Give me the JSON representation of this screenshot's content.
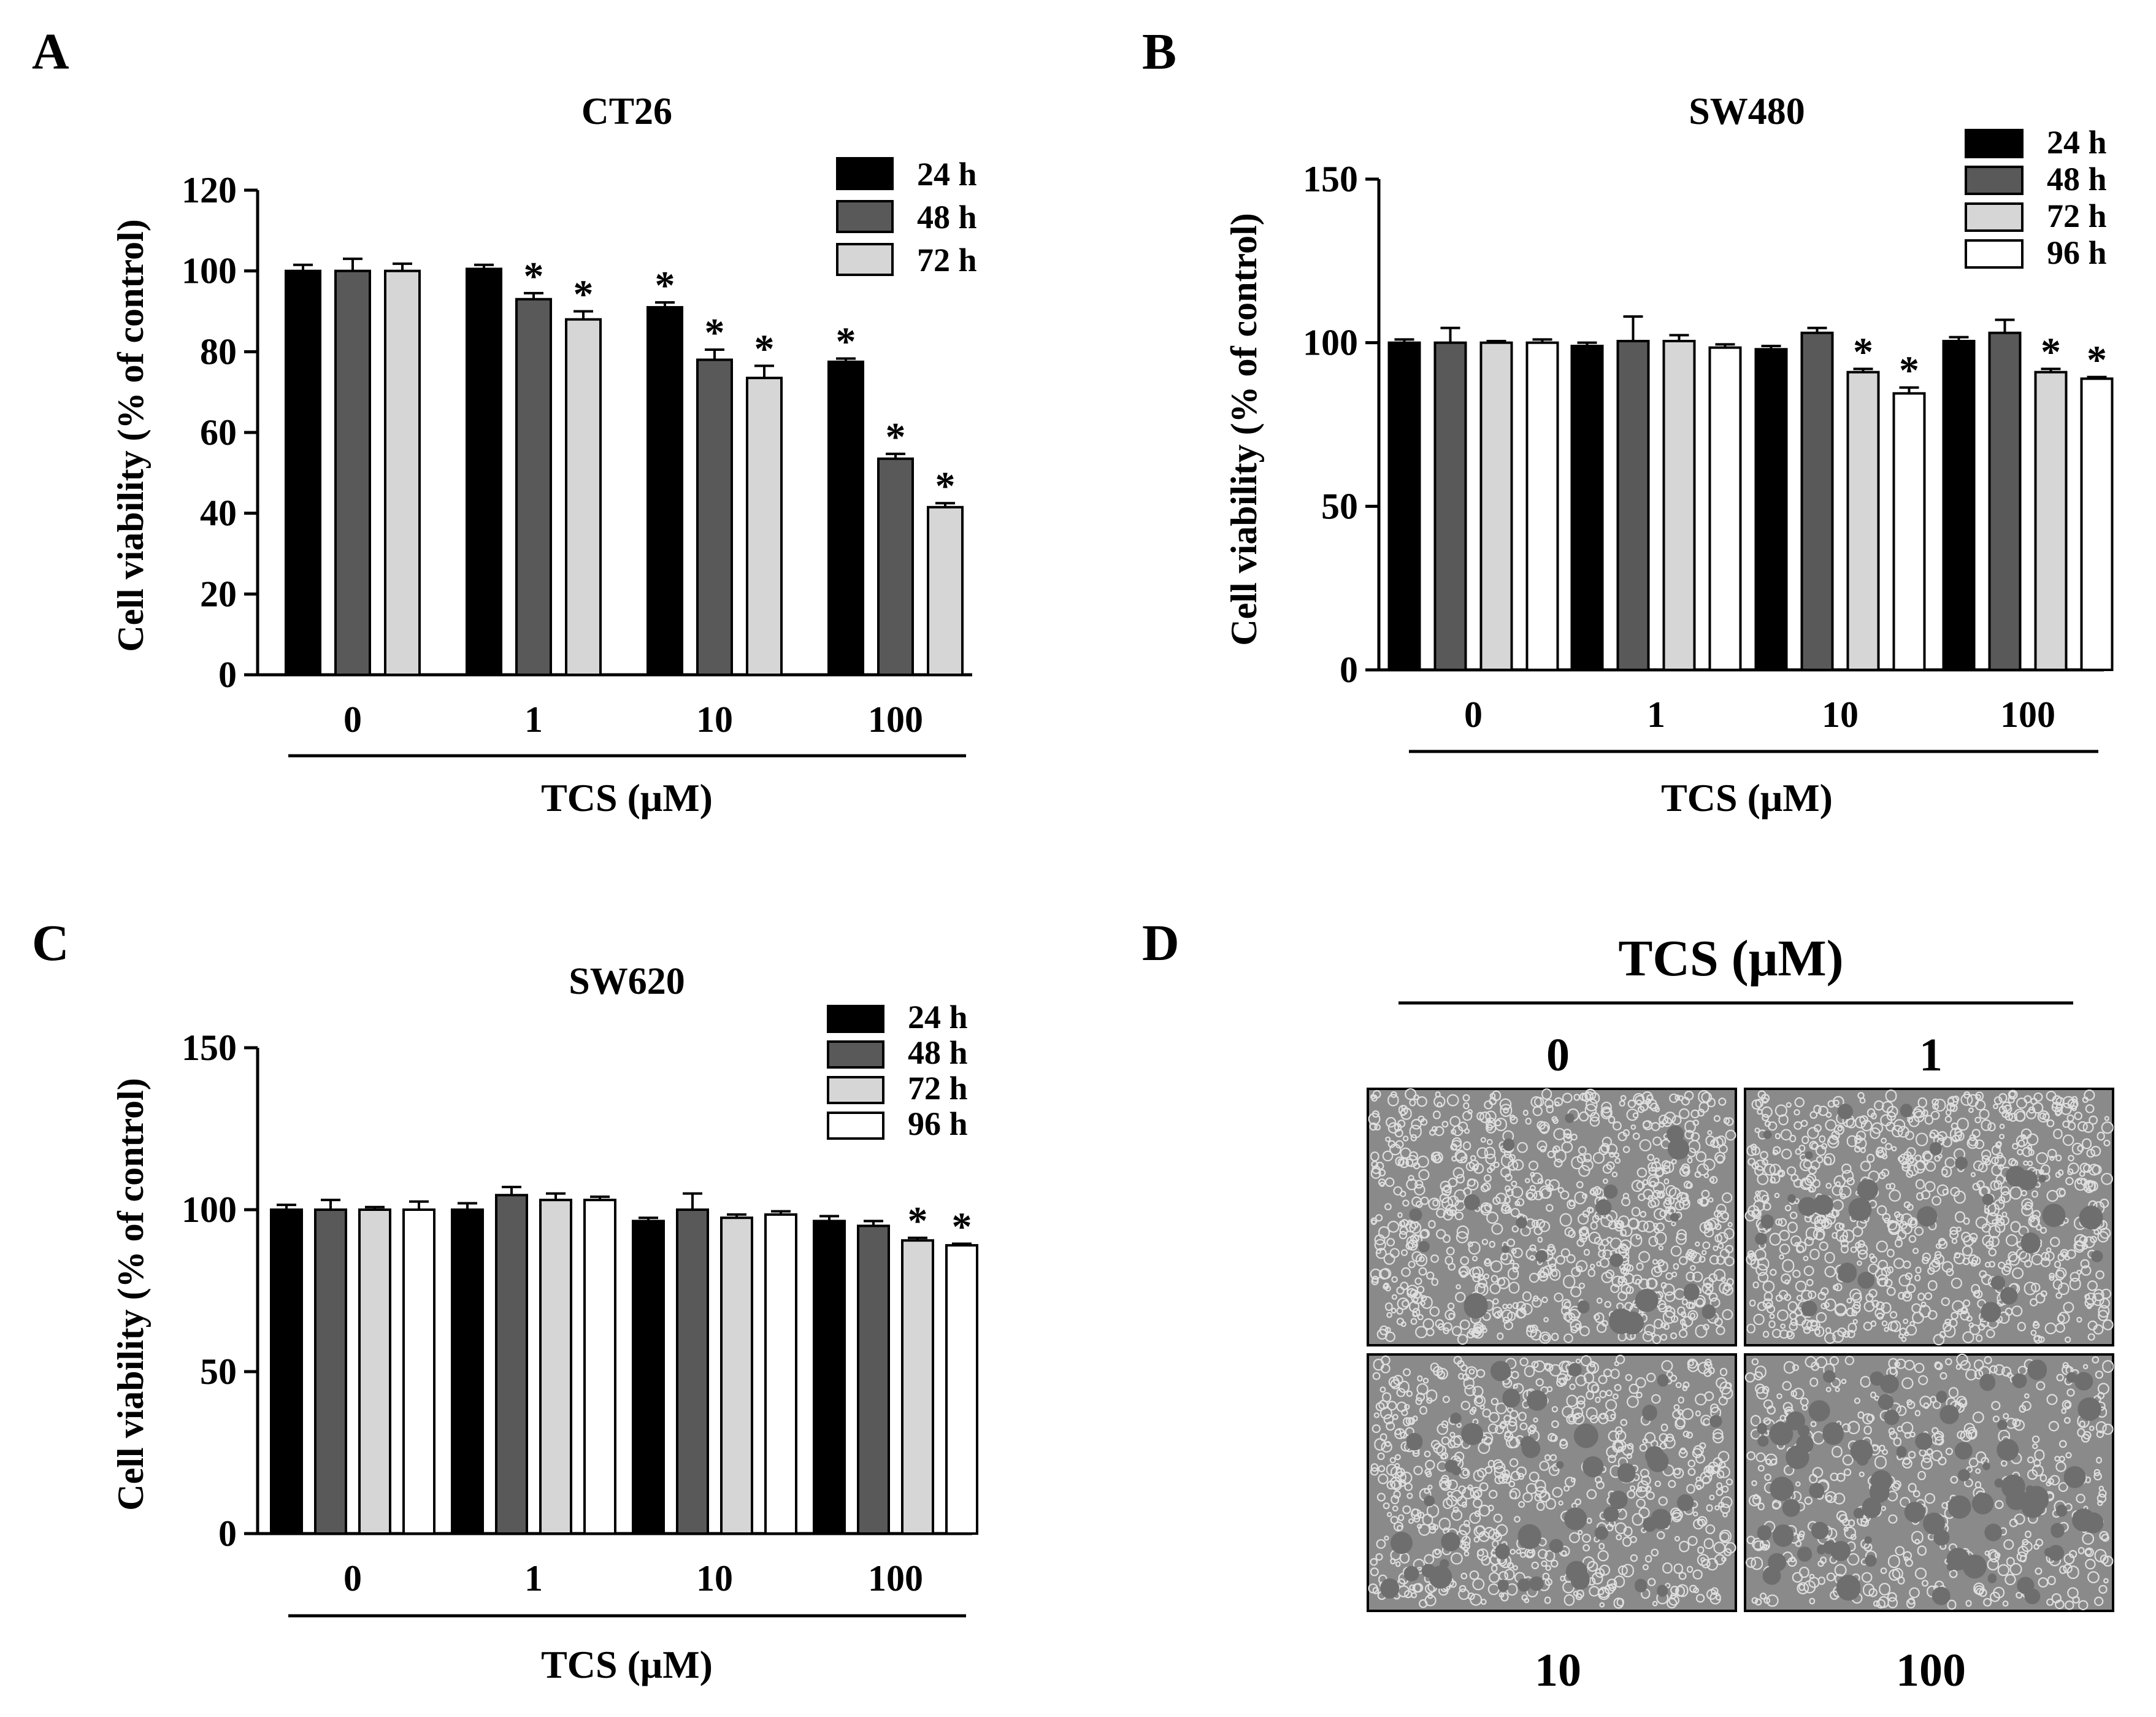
{
  "figure": {
    "panels": {
      "A": "A",
      "B": "B",
      "C": "C",
      "D": "D"
    },
    "series_names": [
      "24 h",
      "48 h",
      "72 h",
      "96 h"
    ],
    "colors": {
      "24 h": "#000000",
      "48 h": "#595959",
      "72 h": "#d6d6d6",
      "96 h": "#ffffff",
      "micrograph_background": "#8a8a8a",
      "micrograph_cells": "#dedede"
    }
  },
  "chart_data": [
    {
      "panel": "A",
      "type": "bar",
      "title": "CT26",
      "xlabel": "TCS (μM)",
      "ylabel": "Cell viability (% of control)",
      "categories": [
        "0",
        "1",
        "10",
        "100"
      ],
      "ylim": [
        0,
        120
      ],
      "yticks": [
        "0",
        "20",
        "40",
        "60",
        "80",
        "100",
        "120"
      ],
      "legend_position": "top-right",
      "series": [
        {
          "name": "24 h",
          "values": [
            100,
            100.5,
            91,
            77.5
          ],
          "errors": [
            1.5,
            1,
            1.2,
            0.8
          ],
          "significant": [
            false,
            false,
            true,
            true
          ]
        },
        {
          "name": "48 h",
          "values": [
            100,
            93,
            78,
            53.5
          ],
          "errors": [
            3,
            1.5,
            2.5,
            1.2
          ],
          "significant": [
            false,
            true,
            true,
            true
          ]
        },
        {
          "name": "72 h",
          "values": [
            100,
            88,
            73.5,
            41.5
          ],
          "errors": [
            1.8,
            2,
            3,
            1
          ],
          "significant": [
            false,
            true,
            true,
            true
          ]
        }
      ]
    },
    {
      "panel": "B",
      "type": "bar",
      "title": "SW480",
      "xlabel": "TCS (μM)",
      "ylabel": "Cell viability (% of control)",
      "categories": [
        "0",
        "1",
        "10",
        "100"
      ],
      "ylim": [
        0,
        150
      ],
      "yticks": [
        "0",
        "50",
        "100",
        "150"
      ],
      "legend_position": "top-right",
      "series": [
        {
          "name": "24 h",
          "values": [
            100,
            99,
            98,
            100.5
          ],
          "errors": [
            1,
            1,
            1,
            1.2
          ],
          "significant": [
            false,
            false,
            false,
            false
          ]
        },
        {
          "name": "48 h",
          "values": [
            100,
            100.5,
            103,
            103
          ],
          "errors": [
            4.5,
            7.5,
            1.5,
            4
          ],
          "significant": [
            false,
            false,
            false,
            false
          ]
        },
        {
          "name": "72 h",
          "values": [
            100,
            100.5,
            91,
            91
          ],
          "errors": [
            0.5,
            1.8,
            1,
            1
          ],
          "significant": [
            false,
            false,
            true,
            true
          ]
        },
        {
          "name": "96 h",
          "values": [
            100,
            98.5,
            84.5,
            89
          ],
          "errors": [
            1,
            1,
            1.8,
            0.5
          ],
          "significant": [
            false,
            false,
            true,
            true
          ]
        }
      ]
    },
    {
      "panel": "C",
      "type": "bar",
      "title": "SW620",
      "xlabel": "TCS (μM)",
      "ylabel": "Cell viability (% of control)",
      "categories": [
        "0",
        "1",
        "10",
        "100"
      ],
      "ylim": [
        0,
        150
      ],
      "yticks": [
        "0",
        "50",
        "100",
        "150"
      ],
      "legend_position": "top-right",
      "series": [
        {
          "name": "24 h",
          "values": [
            100,
            100,
            96.5,
            96.5
          ],
          "errors": [
            1.5,
            2,
            1,
            1.5
          ],
          "significant": [
            false,
            false,
            false,
            false
          ]
        },
        {
          "name": "48 h",
          "values": [
            100,
            104.5,
            100,
            95
          ],
          "errors": [
            3,
            2.5,
            5,
            1.5
          ],
          "significant": [
            false,
            false,
            false,
            false
          ]
        },
        {
          "name": "72 h",
          "values": [
            100,
            103,
            97.5,
            90.5
          ],
          "errors": [
            0.8,
            2,
            1,
            0.8
          ],
          "significant": [
            false,
            false,
            false,
            true
          ]
        },
        {
          "name": "96 h",
          "values": [
            100,
            103,
            98.5,
            89
          ],
          "errors": [
            2.5,
            1,
            1,
            0.5
          ],
          "significant": [
            false,
            false,
            false,
            true
          ]
        }
      ]
    }
  ],
  "micrographs": {
    "title": "TCS (μM)",
    "labels": [
      "0",
      "1",
      "10",
      "100"
    ],
    "density": [
      0.95,
      0.9,
      0.78,
      0.55
    ]
  }
}
